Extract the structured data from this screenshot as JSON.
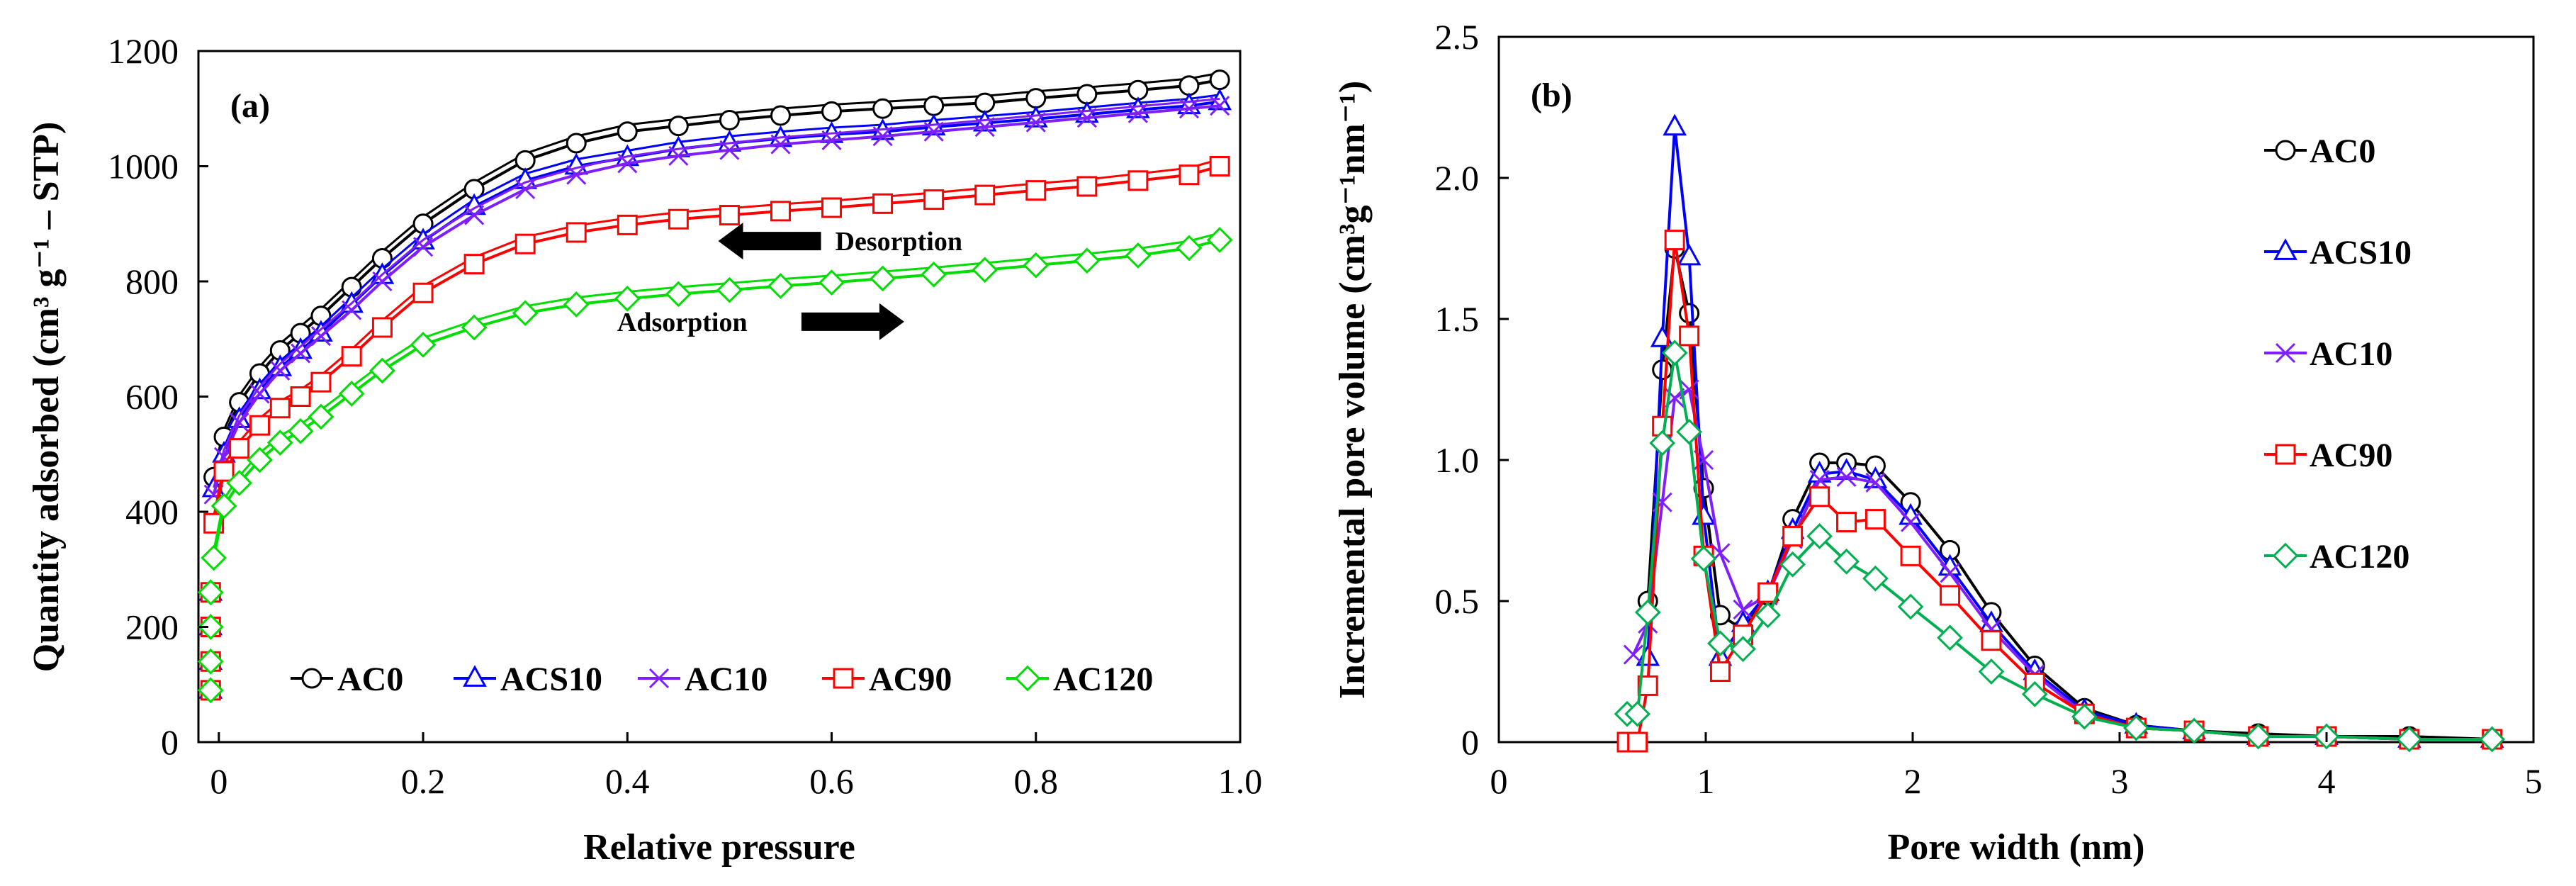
{
  "chart_data": [
    {
      "type": "line",
      "panel_label": "(a)",
      "xlabel": "Relative pressure",
      "ylabel": "Quantity adsorbed (cm³ g⁻¹ – STP)",
      "xlim": [
        -0.02,
        1.0
      ],
      "ylim": [
        0,
        1200
      ],
      "xticks": [
        "0",
        "0.2",
        "0.4",
        "0.6",
        "0.8",
        "1.0"
      ],
      "yticks": [
        "0",
        "200",
        "400",
        "600",
        "800",
        "1000",
        "1200"
      ],
      "legend_placement": "bottom",
      "annotations": [
        {
          "text": "Desorption",
          "arrow": "left",
          "x": 0.6,
          "y": 870
        },
        {
          "text": "Adsorption",
          "arrow": "right",
          "x": 0.56,
          "y": 730
        }
      ],
      "series": [
        {
          "name": "AC0",
          "color": "#000000",
          "marker": "circle",
          "x": [
            -0.005,
            0.005,
            0.02,
            0.04,
            0.06,
            0.08,
            0.1,
            0.13,
            0.16,
            0.2,
            0.25,
            0.3,
            0.35,
            0.4,
            0.45,
            0.5,
            0.55,
            0.6,
            0.65,
            0.7,
            0.75,
            0.8,
            0.85,
            0.9,
            0.95,
            0.98
          ],
          "y": [
            460,
            530,
            590,
            640,
            680,
            710,
            740,
            790,
            840,
            900,
            960,
            1010,
            1040,
            1060,
            1070,
            1080,
            1088,
            1095,
            1100,
            1105,
            1110,
            1118,
            1125,
            1132,
            1140,
            1150
          ]
        },
        {
          "name": "ACS10",
          "color": "#0000ff",
          "marker": "triangle",
          "x": [
            -0.005,
            0.005,
            0.02,
            0.04,
            0.06,
            0.08,
            0.1,
            0.13,
            0.16,
            0.2,
            0.25,
            0.3,
            0.35,
            0.4,
            0.45,
            0.5,
            0.55,
            0.6,
            0.65,
            0.7,
            0.75,
            0.8,
            0.85,
            0.9,
            0.95,
            0.98
          ],
          "y": [
            440,
            500,
            560,
            610,
            650,
            680,
            710,
            760,
            810,
            870,
            930,
            975,
            1000,
            1015,
            1030,
            1040,
            1048,
            1055,
            1060,
            1068,
            1075,
            1082,
            1090,
            1098,
            1105,
            1112
          ]
        },
        {
          "name": "AC10",
          "color": "#7f1fff",
          "marker": "x",
          "x": [
            -0.005,
            0.005,
            0.02,
            0.04,
            0.06,
            0.08,
            0.1,
            0.13,
            0.16,
            0.2,
            0.25,
            0.3,
            0.35,
            0.4,
            0.45,
            0.5,
            0.55,
            0.6,
            0.65,
            0.7,
            0.75,
            0.8,
            0.85,
            0.9,
            0.95,
            0.98
          ],
          "y": [
            430,
            495,
            555,
            605,
            645,
            675,
            705,
            750,
            800,
            860,
            915,
            960,
            985,
            1005,
            1018,
            1028,
            1038,
            1045,
            1052,
            1060,
            1068,
            1076,
            1084,
            1092,
            1100,
            1105
          ]
        },
        {
          "name": "AC90",
          "color": "#ff0000",
          "marker": "square",
          "x": [
            -0.005,
            0.005,
            0.02,
            0.04,
            0.06,
            0.08,
            0.1,
            0.13,
            0.16,
            0.2,
            0.25,
            0.3,
            0.35,
            0.4,
            0.45,
            0.5,
            0.55,
            0.6,
            0.65,
            0.7,
            0.75,
            0.8,
            0.85,
            0.9,
            0.95,
            0.98
          ],
          "y": [
            380,
            470,
            510,
            550,
            580,
            600,
            625,
            670,
            720,
            780,
            830,
            865,
            885,
            898,
            908,
            915,
            922,
            928,
            935,
            942,
            950,
            958,
            965,
            975,
            985,
            1000
          ]
        },
        {
          "name": "AC120",
          "color": "#00dd00",
          "marker": "diamond",
          "x": [
            -0.005,
            0.005,
            0.02,
            0.04,
            0.06,
            0.08,
            0.1,
            0.13,
            0.16,
            0.2,
            0.25,
            0.3,
            0.35,
            0.4,
            0.45,
            0.5,
            0.55,
            0.6,
            0.65,
            0.7,
            0.75,
            0.8,
            0.85,
            0.9,
            0.95,
            0.98
          ],
          "y": [
            320,
            410,
            450,
            490,
            520,
            540,
            565,
            605,
            645,
            690,
            720,
            745,
            760,
            770,
            778,
            785,
            792,
            798,
            805,
            812,
            820,
            828,
            836,
            845,
            858,
            872
          ]
        }
      ]
    },
    {
      "type": "line",
      "panel_label": "(b)",
      "xlabel": "Pore width (nm)",
      "ylabel": "Incremental pore volume (cm³g⁻¹nm⁻¹)",
      "xlim": [
        0,
        5
      ],
      "ylim": [
        0,
        2.5
      ],
      "xticks": [
        "0",
        "1",
        "2",
        "3",
        "4",
        "5"
      ],
      "yticks": [
        "0",
        "0.5",
        "1.0",
        "1.5",
        "2.0",
        "2.5"
      ],
      "legend_placement": "right",
      "series": [
        {
          "name": "AC0",
          "color": "#000000",
          "marker": "circle",
          "x": [
            0.72,
            0.79,
            0.85,
            0.92,
            0.99,
            1.07,
            1.18,
            1.3,
            1.42,
            1.55,
            1.68,
            1.82,
            1.99,
            2.18,
            2.38,
            2.59,
            2.83,
            3.08,
            3.36,
            3.67,
            4.0,
            4.4,
            4.8
          ],
          "y": [
            0.5,
            1.32,
            1.75,
            1.52,
            0.9,
            0.45,
            0.4,
            0.52,
            0.79,
            0.99,
            0.99,
            0.98,
            0.85,
            0.68,
            0.46,
            0.27,
            0.12,
            0.06,
            0.04,
            0.03,
            0.02,
            0.02,
            0.01
          ]
        },
        {
          "name": "ACS10",
          "color": "#0000ff",
          "marker": "triangle",
          "x": [
            0.72,
            0.79,
            0.85,
            0.92,
            0.99,
            1.07,
            1.18,
            1.3,
            1.42,
            1.55,
            1.68,
            1.82,
            1.99,
            2.18,
            2.38,
            2.59,
            2.83,
            3.08,
            3.36,
            3.67,
            4.0,
            4.4,
            4.8
          ],
          "y": [
            0.3,
            1.43,
            2.18,
            1.72,
            0.8,
            0.3,
            0.42,
            0.53,
            0.75,
            0.95,
            0.96,
            0.93,
            0.8,
            0.62,
            0.42,
            0.25,
            0.11,
            0.06,
            0.04,
            0.02,
            0.02,
            0.01,
            0.01
          ]
        },
        {
          "name": "AC10",
          "color": "#7f1fff",
          "marker": "x",
          "x": [
            0.65,
            0.72,
            0.79,
            0.85,
            0.92,
            0.99,
            1.07,
            1.18,
            1.3,
            1.42,
            1.55,
            1.68,
            1.82,
            1.99,
            2.18,
            2.38,
            2.59,
            2.83,
            3.08,
            3.36,
            3.67,
            4.0,
            4.4,
            4.8
          ],
          "y": [
            0.31,
            0.42,
            0.85,
            1.22,
            1.25,
            1.0,
            0.67,
            0.47,
            0.52,
            0.72,
            0.93,
            0.94,
            0.92,
            0.78,
            0.6,
            0.4,
            0.24,
            0.1,
            0.05,
            0.04,
            0.02,
            0.02,
            0.01,
            0.01
          ]
        },
        {
          "name": "AC90",
          "color": "#ff0000",
          "marker": "square",
          "x": [
            0.62,
            0.67,
            0.72,
            0.79,
            0.85,
            0.92,
            0.99,
            1.07,
            1.18,
            1.3,
            1.42,
            1.55,
            1.68,
            1.82,
            1.99,
            2.18,
            2.38,
            2.59,
            2.83,
            3.08,
            3.36,
            3.67,
            4.0,
            4.4,
            4.8
          ],
          "y": [
            0.0,
            0.0,
            0.2,
            1.12,
            1.78,
            1.44,
            0.66,
            0.25,
            0.38,
            0.53,
            0.73,
            0.87,
            0.78,
            0.79,
            0.66,
            0.52,
            0.36,
            0.21,
            0.1,
            0.05,
            0.04,
            0.02,
            0.02,
            0.01,
            0.01
          ]
        },
        {
          "name": "AC120",
          "color": "#00b050",
          "marker": "diamond",
          "x": [
            0.62,
            0.67,
            0.72,
            0.79,
            0.85,
            0.92,
            0.99,
            1.07,
            1.18,
            1.3,
            1.42,
            1.55,
            1.68,
            1.82,
            1.99,
            2.18,
            2.38,
            2.59,
            2.83,
            3.08,
            3.36,
            3.67,
            4.0,
            4.4,
            4.8
          ],
          "y": [
            0.1,
            0.1,
            0.46,
            1.06,
            1.38,
            1.1,
            0.65,
            0.35,
            0.33,
            0.45,
            0.63,
            0.73,
            0.64,
            0.58,
            0.48,
            0.37,
            0.25,
            0.17,
            0.09,
            0.05,
            0.04,
            0.02,
            0.02,
            0.01,
            0.01
          ]
        }
      ]
    }
  ]
}
